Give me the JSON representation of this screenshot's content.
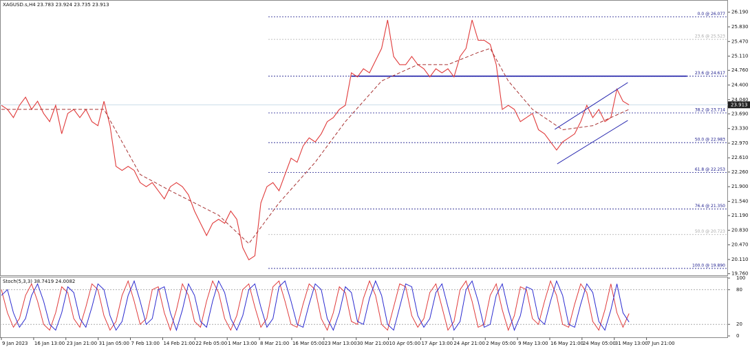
{
  "chart_data": [
    {
      "type": "line",
      "title": "XAGUSD.s,H4  23.783 23.924 23.735 23.913",
      "series": [
        {
          "color": "#e03a3a",
          "values": [
            23.9,
            23.8,
            23.6,
            23.9,
            24.1,
            23.8,
            24.0,
            23.7,
            23.5,
            23.9,
            23.2,
            23.7,
            23.8,
            23.6,
            23.8,
            23.5,
            23.4,
            24.0,
            23.4,
            22.4,
            22.3,
            22.4,
            22.3,
            22.0,
            21.9,
            22.0,
            21.8,
            21.6,
            21.9,
            22.0,
            21.9,
            21.7,
            21.3,
            21.0,
            20.7,
            21.0,
            21.1,
            21.0,
            21.3,
            21.1,
            20.4,
            20.1,
            20.2,
            21.5,
            21.9,
            22.0,
            21.8,
            22.2,
            22.6,
            22.5,
            22.9,
            23.1,
            23.0,
            23.2,
            23.5,
            23.6,
            23.8,
            23.9,
            24.7,
            24.6,
            24.8,
            24.7,
            25.0,
            25.3,
            26.0,
            25.1,
            24.9,
            24.9,
            25.1,
            24.9,
            24.8,
            24.6,
            24.8,
            24.7,
            24.8,
            24.6,
            25.1,
            25.3,
            26.0,
            25.5,
            25.5,
            25.4,
            24.9,
            23.8,
            23.9,
            23.8,
            23.5,
            23.6,
            23.7,
            23.3,
            23.2,
            23.0,
            22.8,
            23.0,
            23.1,
            23.2,
            23.5,
            23.9,
            23.6,
            23.8,
            23.5,
            23.6,
            24.3,
            24.0,
            23.913
          ]
        },
        {
          "color": "#a83232",
          "dashed": true,
          "x": [
            0,
            17,
            23,
            28,
            36,
            41,
            46,
            52,
            57,
            63,
            69,
            74,
            79,
            81,
            84,
            88,
            93,
            98,
            101,
            104
          ],
          "values": [
            23.8,
            23.8,
            22.2,
            21.8,
            21.2,
            20.5,
            21.5,
            22.5,
            23.5,
            24.5,
            24.9,
            24.9,
            25.2,
            25.3,
            24.5,
            23.8,
            23.3,
            23.4,
            23.6,
            23.8
          ]
        }
      ],
      "xlim": [
        0,
        120.4
      ],
      "xticks": [
        {
          "value": 0,
          "label": "9 Jan 2023"
        },
        {
          "value": 5.35,
          "label": "16 Jan 13:00"
        },
        {
          "value": 10.69,
          "label": "23 Jan 21:00"
        },
        {
          "value": 16.04,
          "label": "31 Jan 05:00"
        },
        {
          "value": 21.38,
          "label": "7 Feb 13:00"
        },
        {
          "value": 26.73,
          "label": "14 Feb 21:00"
        },
        {
          "value": 32.07,
          "label": "22 Feb 05:00"
        },
        {
          "value": 37.42,
          "label": "1 Mar 13:00"
        },
        {
          "value": 42.76,
          "label": "8 Mar 21:00"
        },
        {
          "value": 48.11,
          "label": "16 Mar 05:00"
        },
        {
          "value": 53.45,
          "label": "23 Mar 13:00"
        },
        {
          "value": 58.8,
          "label": "30 Mar 21:00"
        },
        {
          "value": 64.14,
          "label": "10 Apr 05:00"
        },
        {
          "value": 69.49,
          "label": "17 Apr 13:00"
        },
        {
          "value": 74.83,
          "label": "24 Apr 21:00"
        },
        {
          "value": 80.18,
          "label": "2 May 05:00"
        },
        {
          "value": 85.52,
          "label": "9 May 13:00"
        },
        {
          "value": 90.87,
          "label": "16 May 21:00"
        },
        {
          "value": 96.21,
          "label": "24 May 05:00"
        },
        {
          "value": 101.56,
          "label": "31 May 13:00"
        },
        {
          "value": 106.9,
          "label": "7 Jun 21:00"
        }
      ],
      "ylim": [
        19.72,
        26.49
      ],
      "yticks": [
        {
          "value": 26.19,
          "label": "26.190"
        },
        {
          "value": 25.83,
          "label": "25.830"
        },
        {
          "value": 25.47,
          "label": "25.470"
        },
        {
          "value": 25.11,
          "label": "25.110"
        },
        {
          "value": 24.76,
          "label": "24.760"
        },
        {
          "value": 24.4,
          "label": "24.400"
        },
        {
          "value": 24.04,
          "label": "24.040"
        },
        {
          "value": 23.69,
          "label": "23.690"
        },
        {
          "value": 23.33,
          "label": "23.330"
        },
        {
          "value": 22.97,
          "label": "22.970"
        },
        {
          "value": 22.61,
          "label": "22.610"
        },
        {
          "value": 22.26,
          "label": "22.260"
        },
        {
          "value": 21.9,
          "label": "21.900"
        },
        {
          "value": 21.54,
          "label": "21.540"
        },
        {
          "value": 21.19,
          "label": "21.190"
        },
        {
          "value": 20.83,
          "label": "20.830"
        },
        {
          "value": 20.47,
          "label": "20.470"
        },
        {
          "value": 20.11,
          "label": "20.110"
        },
        {
          "value": 19.76,
          "label": "19.760"
        }
      ],
      "last_price": 23.913,
      "levels": [
        {
          "value": 26.077,
          "label": "0.0 @ 26.077",
          "color": "#1a1a8c"
        },
        {
          "value": 25.523,
          "label": "23.6 @ 25.523",
          "color": "#aaaaaa"
        },
        {
          "value": 24.617,
          "label": "23.6 @ 24.617",
          "color": "#1a1a8c"
        },
        {
          "value": 23.714,
          "label": "38.2 @ 23.714",
          "color": "#1a1a8c"
        },
        {
          "value": 22.983,
          "label": "50.0 @ 22.983",
          "color": "#1a1a8c"
        },
        {
          "value": 22.253,
          "label": "61.8 @ 22.253",
          "color": "#1a1a8c"
        },
        {
          "value": 21.35,
          "label": "76.4 @ 21.350",
          "color": "#1a1a8c"
        },
        {
          "value": 20.723,
          "label": "50.0 @ 20.723",
          "color": "#aaaaaa"
        },
        {
          "value": 19.89,
          "label": "100.0 @ 19.890",
          "color": "#1a1a8c"
        }
      ],
      "hline": {
        "value": 24.617,
        "x": [
          58,
          113.6
        ],
        "color": "#0a0aa0"
      },
      "channel": [
        {
          "x": [
            91.7,
            103.8
          ],
          "values": [
            23.31,
            24.46
          ]
        },
        {
          "x": [
            92.1,
            103.8
          ],
          "values": [
            22.46,
            23.53
          ]
        }
      ],
      "channel_color": "#2a2ab0"
    },
    {
      "type": "stoch",
      "title": "Stoch(5,3,3) 38.7419 24.0082",
      "series": [
        {
          "color": "#e03a3a",
          "values": [
            80,
            40,
            15,
            30,
            70,
            90,
            60,
            20,
            10,
            40,
            85,
            75,
            30,
            15,
            50,
            90,
            80,
            35,
            10,
            25,
            70,
            95,
            60,
            20,
            30,
            80,
            85,
            40,
            10,
            45,
            90,
            70,
            25,
            15,
            60,
            95,
            75,
            30,
            10,
            35,
            80,
            90,
            50,
            15,
            30,
            85,
            95,
            60,
            20,
            15,
            55,
            90,
            80,
            30,
            10,
            40,
            85,
            75,
            25,
            20,
            65,
            95,
            70,
            20,
            10,
            50,
            90,
            85,
            35,
            15,
            30,
            75,
            90,
            50,
            10,
            25,
            80,
            95,
            60,
            15,
            20,
            70,
            90,
            45,
            10,
            35,
            85,
            80,
            30,
            20,
            60,
            95,
            70,
            20,
            15,
            55,
            90,
            75,
            25,
            10,
            45,
            90,
            40,
            15,
            38.7419
          ]
        },
        {
          "color": "#2a2ad0",
          "values": [
            70,
            80,
            40,
            15,
            30,
            70,
            90,
            60,
            20,
            10,
            40,
            85,
            75,
            30,
            15,
            50,
            90,
            80,
            35,
            10,
            25,
            70,
            95,
            60,
            20,
            30,
            80,
            85,
            40,
            10,
            45,
            90,
            70,
            25,
            15,
            60,
            95,
            75,
            30,
            10,
            35,
            80,
            90,
            50,
            15,
            30,
            85,
            95,
            60,
            20,
            15,
            55,
            90,
            80,
            30,
            10,
            40,
            85,
            75,
            25,
            20,
            65,
            95,
            70,
            20,
            10,
            50,
            90,
            85,
            35,
            15,
            30,
            75,
            90,
            50,
            10,
            25,
            80,
            95,
            60,
            15,
            20,
            70,
            90,
            45,
            10,
            35,
            85,
            80,
            30,
            20,
            60,
            95,
            70,
            20,
            15,
            55,
            90,
            75,
            25,
            10,
            45,
            90,
            40,
            24.0082
          ]
        }
      ],
      "ylim": [
        0,
        100
      ],
      "yticks": [
        100,
        80,
        20,
        0
      ],
      "levels": [
        80,
        20
      ]
    }
  ]
}
